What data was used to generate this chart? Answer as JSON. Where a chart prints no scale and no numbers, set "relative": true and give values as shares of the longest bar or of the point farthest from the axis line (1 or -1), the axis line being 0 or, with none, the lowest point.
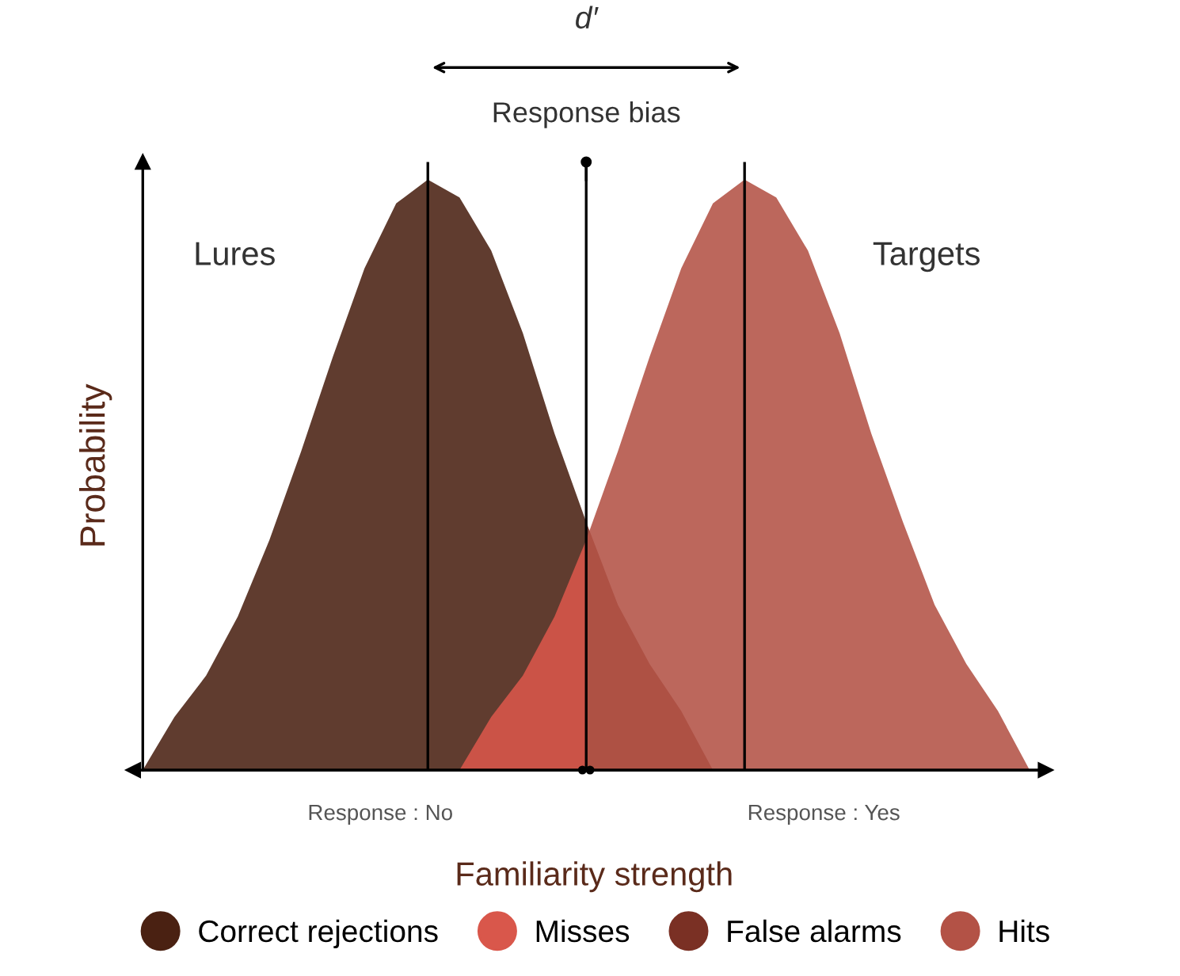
{
  "chart_data": {
    "type": "area",
    "relative": true,
    "xlabel": "Familiarity strength",
    "ylabel": "Probability",
    "categories": [
      null,
      null,
      null,
      null,
      null,
      null,
      null,
      null,
      null,
      null,
      null,
      null,
      null,
      null,
      null,
      null,
      null,
      null,
      null,
      null,
      null,
      null,
      null,
      null,
      null,
      null,
      null,
      null,
      null
    ],
    "legend": "bottom",
    "grid": "x",
    "series": [
      {
        "name": "Correct rejections",
        "color": "#4a2112",
        "values": [
          0,
          0.09,
          0.16,
          0.26,
          0.39,
          0.54,
          0.7,
          0.85,
          0.96,
          1.0,
          0.97,
          0.88,
          0.74,
          0.57,
          0.42,
          null,
          null,
          null,
          null,
          null,
          null,
          null,
          null,
          null,
          null,
          null,
          null,
          null,
          null
        ]
      },
      {
        "name": "Misses",
        "color": "#d9574b",
        "values": [
          null,
          null,
          null,
          null,
          null,
          null,
          null,
          null,
          null,
          null,
          0,
          0.09,
          0.16,
          0.26,
          0.39,
          null,
          null,
          null,
          null,
          null,
          null,
          null,
          null,
          null,
          null,
          null,
          null,
          null,
          null
        ]
      },
      {
        "name": "False alarms",
        "color": "#7a3024",
        "values": [
          null,
          null,
          null,
          null,
          null,
          null,
          null,
          null,
          null,
          null,
          null,
          null,
          null,
          null,
          0.42,
          0.28,
          0.18,
          0.1,
          0,
          null,
          null,
          null,
          null,
          null,
          null,
          null,
          null,
          null,
          null
        ]
      },
      {
        "name": "Hits",
        "color": "#b35246",
        "values": [
          null,
          null,
          null,
          null,
          null,
          null,
          null,
          null,
          null,
          null,
          null,
          null,
          null,
          null,
          0.39,
          0.54,
          0.7,
          0.85,
          0.96,
          1.0,
          0.97,
          0.88,
          0.74,
          0.57,
          0.42,
          0.28,
          0.18,
          0.1,
          0
        ]
      }
    ],
    "annotations": [
      "d′",
      "Lures",
      "Targets",
      "Response : No",
      "Response : Yes",
      "Response bias"
    ]
  }
}
